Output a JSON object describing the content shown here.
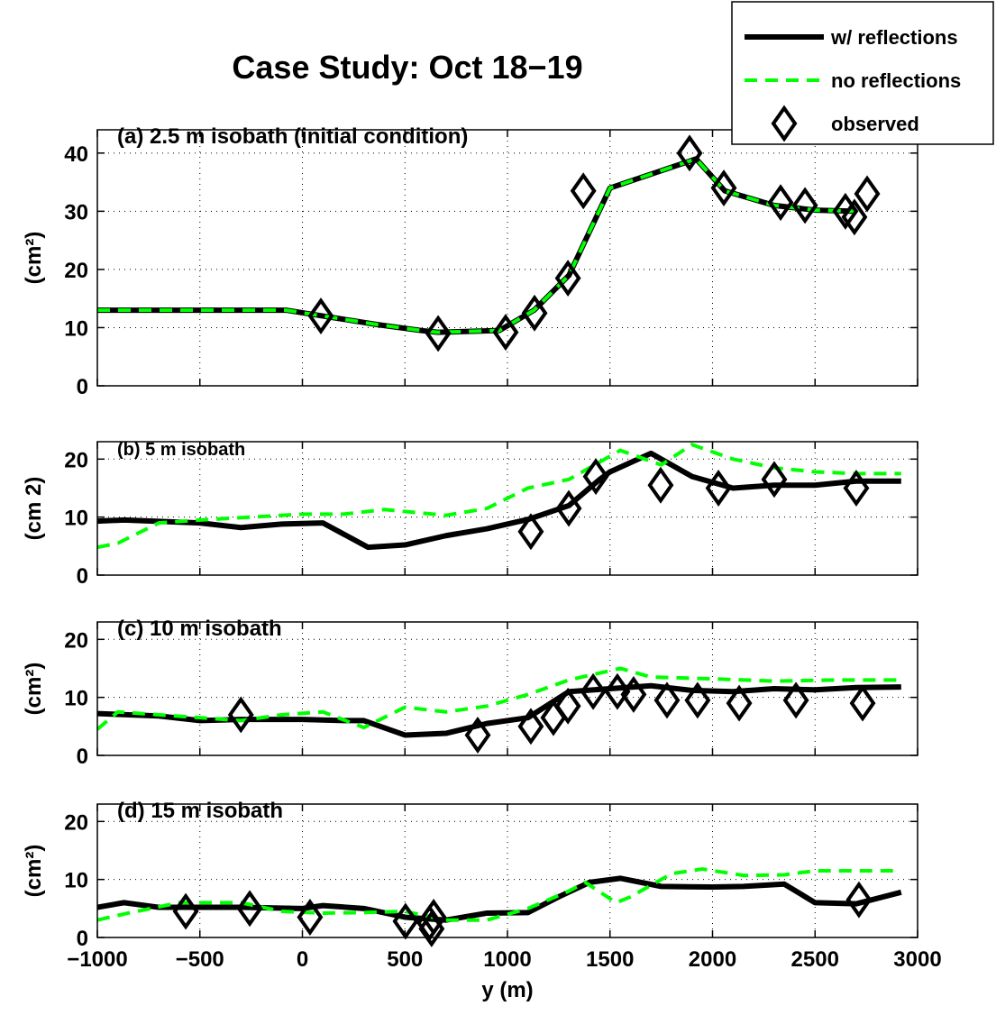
{
  "title": "Case Study: Oct 18−19",
  "legend_position": "upper right",
  "chart_data": [
    {
      "type": "line",
      "title": "(a)  2.5 m isobath (initial condition)",
      "ylabel": "(cm²)",
      "grid": true,
      "xlim": [
        -1000,
        3000
      ],
      "xticks": [
        -1000,
        -500,
        0,
        500,
        1000,
        1500,
        2000,
        2500,
        3000
      ],
      "ylim": [
        0,
        44
      ],
      "yticks": [
        0,
        10,
        20,
        30,
        40
      ],
      "series": [
        {
          "name": "w/ reflections",
          "color": "#000000",
          "style": "solid",
          "x": [
            -1000,
            -80,
            100,
            370,
            580,
            660,
            960,
            1130,
            1300,
            1500,
            1920,
            2060,
            2300,
            2500,
            2700
          ],
          "values": [
            13,
            13,
            12,
            10.5,
            9.5,
            9.2,
            9.5,
            13,
            19,
            34,
            39,
            33.5,
            31,
            30.2,
            30
          ]
        },
        {
          "name": "no reflections",
          "color": "#00ff00",
          "style": "dashed",
          "x": [
            -1000,
            -80,
            100,
            370,
            580,
            660,
            960,
            1130,
            1300,
            1500,
            1920,
            2060,
            2300,
            2500,
            2700
          ],
          "values": [
            13,
            13,
            12,
            10.5,
            9.5,
            9.2,
            9.5,
            13,
            19,
            34,
            39,
            33.5,
            31,
            30.2,
            30
          ]
        },
        {
          "name": "observed",
          "color": "#000000",
          "style": "diamond",
          "x": [
            90,
            662,
            991,
            1132,
            1295,
            1370,
            1888,
            2055,
            2332,
            2451,
            2648,
            2692,
            2754
          ],
          "values": [
            12,
            9,
            9.2,
            12.5,
            18.5,
            33.5,
            40,
            34,
            31.5,
            31,
            30,
            29,
            33
          ]
        }
      ]
    },
    {
      "type": "line",
      "title": "(b)  5 m isobath",
      "ylabel": "(cm 2)",
      "grid": true,
      "xlim": [
        -1000,
        3000
      ],
      "xticks": [
        -1000,
        -500,
        0,
        500,
        1000,
        1500,
        2000,
        2500,
        3000
      ],
      "ylim": [
        0,
        23
      ],
      "yticks": [
        0,
        10,
        20
      ],
      "series": [
        {
          "name": "w/ reflections",
          "color": "#000000",
          "style": "solid",
          "x": [
            -1000,
            -870,
            -500,
            -300,
            -100,
            100,
            320,
            500,
            700,
            900,
            1100,
            1300,
            1450,
            1500,
            1700,
            1900,
            2100,
            2300,
            2500,
            2700,
            2920
          ],
          "values": [
            9.3,
            9.5,
            9,
            8.2,
            8.8,
            9,
            4.8,
            5.2,
            6.8,
            8,
            9.6,
            12,
            16.5,
            17.8,
            21,
            17,
            15,
            15.5,
            15.5,
            16.2,
            16.2
          ]
        },
        {
          "name": "no reflections",
          "color": "#00ff00",
          "style": "dashed",
          "x": [
            -1000,
            -900,
            -700,
            -500,
            0,
            200,
            400,
            700,
            900,
            1100,
            1300,
            1550,
            1750,
            1900,
            2100,
            2300,
            2500,
            2700,
            2920
          ],
          "values": [
            4.8,
            5.5,
            9,
            9.5,
            10.5,
            10.5,
            11.3,
            10.3,
            11.5,
            15,
            16.5,
            21.5,
            19,
            22.5,
            20,
            18.5,
            17.8,
            17.5,
            17.5
          ]
        },
        {
          "name": "observed",
          "color": "#000000",
          "style": "diamond",
          "x": [
            1114,
            1299,
            1431,
            1747,
            2029,
            2301,
            2701
          ],
          "values": [
            7.5,
            11.5,
            17,
            15.5,
            15,
            16.5,
            15
          ]
        }
      ]
    },
    {
      "type": "line",
      "title": "(c)  10 m isobath",
      "ylabel": "(cm²)",
      "grid": true,
      "xlim": [
        -1000,
        3000
      ],
      "xticks": [
        -1000,
        -500,
        0,
        500,
        1000,
        1500,
        2000,
        2500,
        3000
      ],
      "ylim": [
        0,
        23
      ],
      "yticks": [
        0,
        10,
        20
      ],
      "series": [
        {
          "name": "w/ reflections",
          "color": "#000000",
          "style": "solid",
          "x": [
            -1000,
            -700,
            -500,
            -300,
            0,
            200,
            300,
            500,
            700,
            900,
            1100,
            1300,
            1500,
            1700,
            1900,
            2100,
            2300,
            2500,
            2700,
            2920
          ],
          "values": [
            7.2,
            6.8,
            6,
            6.2,
            6.2,
            6,
            6,
            3.5,
            3.8,
            5.5,
            6.5,
            11,
            11.5,
            12,
            11.2,
            11,
            11.5,
            11.3,
            11.7,
            11.8
          ]
        },
        {
          "name": "no reflections",
          "color": "#00ff00",
          "style": "dashed",
          "x": [
            -1000,
            -900,
            -500,
            -300,
            -100,
            100,
            300,
            500,
            700,
            900,
            1100,
            1300,
            1550,
            1700,
            2000,
            2300,
            2600,
            2920
          ],
          "values": [
            4.5,
            7.5,
            6.5,
            6,
            7,
            7.5,
            4.8,
            8.3,
            7.5,
            8.5,
            10.5,
            13,
            15,
            13.5,
            13.2,
            12.8,
            13,
            13
          ]
        },
        {
          "name": "observed",
          "color": "#000000",
          "style": "diamond",
          "x": [
            -300,
            855,
            1114,
            1224,
            1295,
            1418,
            1536,
            1615,
            1778,
            1927,
            2130,
            2407,
            2732
          ],
          "values": [
            7,
            3.5,
            5,
            6.5,
            8.5,
            11,
            11,
            10.5,
            9.5,
            9.5,
            9,
            9.5,
            9
          ]
        }
      ]
    },
    {
      "type": "line",
      "title": "(d)  15 m isobath",
      "ylabel": "(cm²)",
      "xlabel": "y (m)",
      "grid": true,
      "xlim": [
        -1000,
        3000
      ],
      "xticks": [
        {
          "value": -1000,
          "label": "−1000"
        },
        {
          "value": -500,
          "label": "−500"
        },
        0,
        500,
        1000,
        1500,
        2000,
        2500,
        3000
      ],
      "ylim": [
        0,
        23
      ],
      "yticks": [
        0,
        10,
        20
      ],
      "series": [
        {
          "name": "w/ reflections",
          "color": "#000000",
          "style": "solid",
          "x": [
            -1000,
            -870,
            -700,
            -300,
            0,
            100,
            300,
            500,
            700,
            900,
            1100,
            1250,
            1400,
            1550,
            1750,
            2000,
            2150,
            2350,
            2500,
            2700,
            2920
          ],
          "values": [
            5.2,
            6,
            5.2,
            5.2,
            5,
            5.5,
            5,
            3.5,
            3,
            4.2,
            4.3,
            7,
            9.5,
            10.2,
            8.8,
            8.7,
            8.8,
            9.2,
            6,
            5.8,
            7.8
          ]
        },
        {
          "name": "no reflections",
          "color": "#00ff00",
          "style": "dashed",
          "x": [
            -1000,
            -850,
            -600,
            -300,
            -100,
            100,
            300,
            500,
            700,
            900,
            1100,
            1300,
            1380,
            1530,
            1600,
            1800,
            1950,
            2150,
            2350,
            2500,
            2920
          ],
          "values": [
            3,
            4.2,
            6,
            6,
            4.5,
            4.2,
            4.3,
            4.5,
            3,
            3,
            5,
            8,
            9.5,
            6,
            7,
            11,
            11.8,
            10.7,
            10.8,
            11.5,
            11.5
          ]
        },
        {
          "name": "observed",
          "color": "#000000",
          "style": "diamond",
          "x": [
            -569,
            -257,
            37,
            503,
            620,
            630,
            640,
            2714
          ],
          "values": [
            4.5,
            5,
            3.5,
            2.8,
            2.5,
            1.5,
            3.5,
            6.5
          ]
        }
      ]
    }
  ]
}
